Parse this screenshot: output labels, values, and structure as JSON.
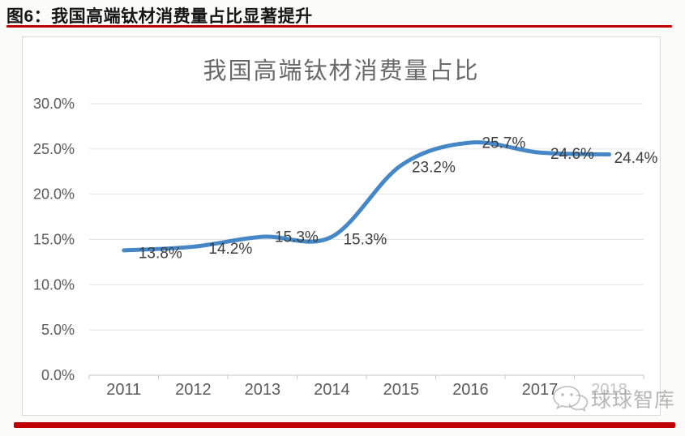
{
  "page": {
    "header": "图6：我国高端钛材消费量占比显著提升",
    "accent_red": "#c00000"
  },
  "chart_data": {
    "type": "line",
    "title": "我国高端钛材消费量占比",
    "categories": [
      "2011",
      "2012",
      "2013",
      "2014",
      "2015",
      "2016",
      "2017",
      "2018"
    ],
    "series": [
      {
        "name": "我国高端钛材消费量占比",
        "values": [
          13.8,
          14.2,
          15.3,
          15.3,
          23.2,
          25.7,
          24.6,
          24.4
        ]
      }
    ],
    "data_labels": [
      "13.8%",
      "14.2%",
      "15.3%",
      "15.3%",
      "23.2%",
      "25.7%",
      "24.6%",
      "24.4%"
    ],
    "y_ticks": [
      {
        "value": 30,
        "label": "30.0%"
      },
      {
        "value": 25,
        "label": "25.0%"
      },
      {
        "value": 20,
        "label": "20.0%"
      },
      {
        "value": 15,
        "label": "15.0%"
      },
      {
        "value": 10,
        "label": "10.0%"
      },
      {
        "value": 5,
        "label": "5.0%"
      },
      {
        "value": 0,
        "label": "0.0%"
      }
    ],
    "ylim": [
      0,
      30
    ],
    "grid": true,
    "legend": "none",
    "colors": {
      "line": "#4587c7",
      "gridline": "#e3e3e3",
      "axis": "#c8c8c8",
      "axis_label": "#5a5a5a",
      "data_label": "#3d3d3d",
      "title": "#696969"
    }
  },
  "watermark": {
    "icon": "wechat-icon",
    "text": "球球智库",
    "color": "#a8a8a8"
  }
}
